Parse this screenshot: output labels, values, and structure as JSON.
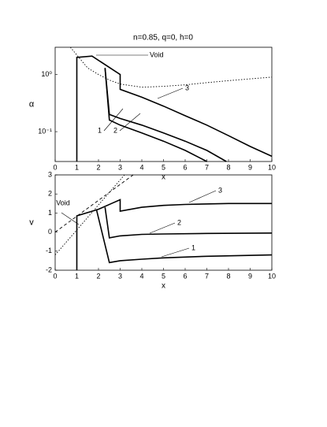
{
  "chart_data": [
    {
      "type": "line",
      "title": "n=0.85, q=0, h=0",
      "xlabel": "x",
      "ylabel": "α",
      "ylog": true,
      "xlim": [
        0,
        10
      ],
      "ylim": [
        0.03,
        3
      ],
      "xticks": [
        0,
        1,
        2,
        3,
        4,
        5,
        6,
        7,
        8,
        9,
        10
      ],
      "yticks": [
        {
          "value": 0.1,
          "label": "10⁻¹"
        },
        {
          "value": 1,
          "label": "10⁰"
        }
      ],
      "annotations": [
        "Void"
      ],
      "series": [
        {
          "name": "3",
          "color": "#000000",
          "style": "solid",
          "x": [
            1,
            1,
            1.7,
            3,
            3,
            4,
            5,
            6,
            7,
            8,
            9,
            10
          ],
          "values": [
            0.03,
            2.0,
            2.1,
            1.0,
            0.55,
            0.4,
            0.28,
            0.19,
            0.13,
            0.085,
            0.055,
            0.037
          ]
        },
        {
          "name": "2",
          "color": "#000000",
          "style": "solid",
          "x": [
            2.3,
            2.5,
            3,
            4,
            5,
            6,
            7,
            7.9
          ],
          "values": [
            1.3,
            0.2,
            0.17,
            0.13,
            0.095,
            0.068,
            0.047,
            0.03
          ]
        },
        {
          "name": "1",
          "color": "#000000",
          "style": "solid",
          "x": [
            2.3,
            2.5,
            3,
            4,
            5,
            6,
            7
          ],
          "values": [
            1.3,
            0.16,
            0.13,
            0.095,
            0.068,
            0.047,
            0.03
          ]
        },
        {
          "color": "#000000",
          "style": "dotted",
          "x": [
            0.7,
            1,
            1.5,
            2,
            2.5,
            3,
            4,
            5,
            6,
            7,
            8,
            9,
            10
          ],
          "values": [
            3.0,
            2.2,
            1.3,
            1.0,
            0.8,
            0.68,
            0.6,
            0.62,
            0.66,
            0.72,
            0.78,
            0.84,
            0.9
          ]
        }
      ]
    },
    {
      "type": "line",
      "xlabel": "x",
      "ylabel": "v",
      "ylog": false,
      "xlim": [
        0,
        10
      ],
      "ylim": [
        -2,
        3
      ],
      "xticks": [
        0,
        1,
        2,
        3,
        4,
        5,
        6,
        7,
        8,
        9,
        10
      ],
      "yticks": [
        -2,
        -1,
        0,
        1,
        2,
        3
      ],
      "annotations": [
        "Void"
      ],
      "series": [
        {
          "name": "3",
          "color": "#000000",
          "style": "solid",
          "x": [
            1,
            1,
            2,
            2.6,
            3,
            3,
            4,
            5,
            6,
            8,
            10
          ],
          "values": [
            -2,
            0.85,
            1.2,
            1.5,
            1.7,
            1.1,
            1.3,
            1.4,
            1.45,
            1.5,
            1.5
          ]
        },
        {
          "name": "2",
          "color": "#000000",
          "style": "solid",
          "x": [
            2.3,
            2.5,
            3,
            4,
            5,
            7,
            10
          ],
          "values": [
            1.3,
            -0.3,
            -0.2,
            -0.12,
            -0.1,
            -0.07,
            -0.05
          ]
        },
        {
          "name": "1",
          "color": "#000000",
          "style": "solid",
          "x": [
            1.9,
            2.5,
            3,
            4,
            5,
            7,
            10
          ],
          "values": [
            1.2,
            -1.6,
            -1.5,
            -1.42,
            -1.35,
            -1.27,
            -1.2
          ]
        },
        {
          "color": "#000000",
          "style": "dashed",
          "x": [
            0,
            3.6
          ],
          "values": [
            0,
            3
          ]
        },
        {
          "color": "#000000",
          "style": "dotted",
          "x": [
            0,
            3.2
          ],
          "values": [
            -1.2,
            3
          ]
        }
      ]
    }
  ]
}
